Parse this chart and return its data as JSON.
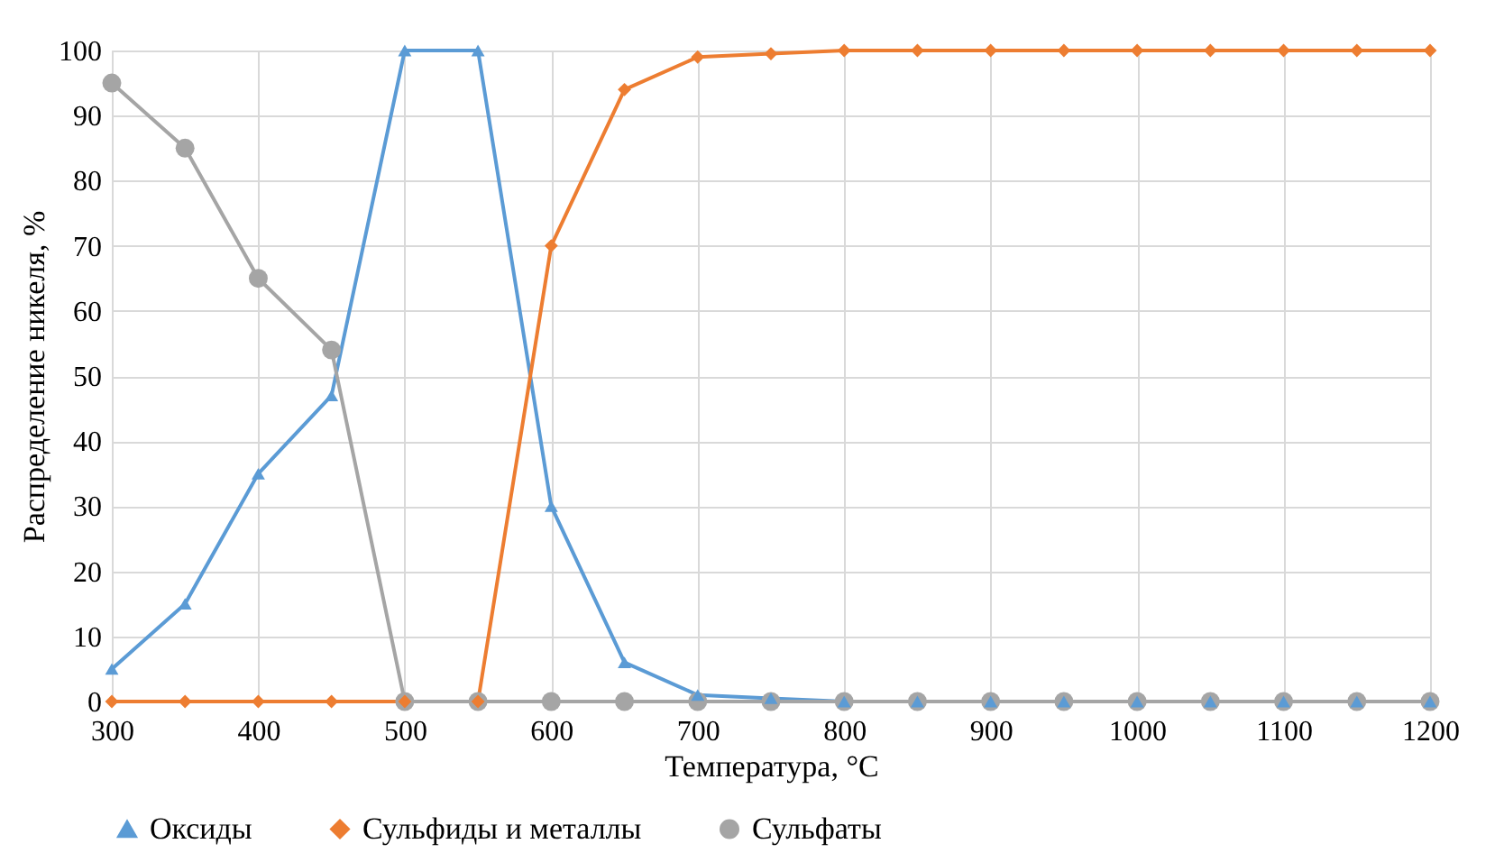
{
  "chart_data": {
    "type": "line",
    "xlabel": "Температура, °C",
    "ylabel": "Распределение никеля, %",
    "x": [
      300,
      350,
      400,
      450,
      500,
      550,
      600,
      650,
      700,
      750,
      800,
      850,
      900,
      950,
      1000,
      1050,
      1100,
      1150,
      1200
    ],
    "series": [
      {
        "name": "Оксиды",
        "color": "#5b9bd5",
        "marker": "triangle",
        "values": [
          5,
          15,
          35,
          47,
          100,
          100,
          30,
          6,
          1,
          0.5,
          0,
          0,
          0,
          0,
          0,
          0,
          0,
          0,
          0
        ]
      },
      {
        "name": "Сульфиды и металлы",
        "color": "#ed7d31",
        "marker": "diamond",
        "values": [
          0,
          0,
          0,
          0,
          0,
          0,
          70,
          94,
          99,
          99.5,
          100,
          100,
          100,
          100,
          100,
          100,
          100,
          100,
          100
        ]
      },
      {
        "name": "Сульфаты",
        "color": "#a5a5a5",
        "marker": "circle",
        "values": [
          95,
          85,
          65,
          54,
          0,
          0,
          0,
          0,
          0,
          0,
          0,
          0,
          0,
          0,
          0,
          0,
          0,
          0,
          0
        ]
      }
    ],
    "xlim": [
      300,
      1200
    ],
    "xticks": [
      300,
      400,
      500,
      600,
      700,
      800,
      900,
      1000,
      1100,
      1200
    ],
    "ylim": [
      0,
      100
    ],
    "yticks": [
      0,
      10,
      20,
      30,
      40,
      50,
      60,
      70,
      80,
      90,
      100
    ],
    "grid": true,
    "legend": "bottom",
    "line_style": "solid"
  }
}
